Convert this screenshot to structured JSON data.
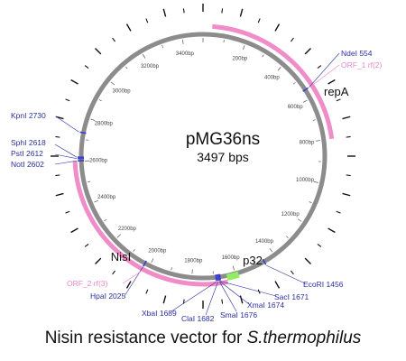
{
  "plasmid": {
    "name": "pMG36ns",
    "size_label": "3497 bps",
    "length_bp": 3497
  },
  "tick_labels": [
    {
      "bp": 200,
      "text": "200bp"
    },
    {
      "bp": 400,
      "text": "400bp"
    },
    {
      "bp": 600,
      "text": "600bp"
    },
    {
      "bp": 800,
      "text": "800bp"
    },
    {
      "bp": 1000,
      "text": "1000bp"
    },
    {
      "bp": 1200,
      "text": "1200bp"
    },
    {
      "bp": 1400,
      "text": "1400bp"
    },
    {
      "bp": 1600,
      "text": "1600bp"
    },
    {
      "bp": 1800,
      "text": "1800bp"
    },
    {
      "bp": 2000,
      "text": "2000bp"
    },
    {
      "bp": 2200,
      "text": "2200bp"
    },
    {
      "bp": 2400,
      "text": "2400bp"
    },
    {
      "bp": 2600,
      "text": "2600bp"
    },
    {
      "bp": 2800,
      "text": "2800bp"
    },
    {
      "bp": 3000,
      "text": "3000bp"
    },
    {
      "bp": 3200,
      "text": "3200bp"
    },
    {
      "bp": 3400,
      "text": "3400bp"
    }
  ],
  "features": [
    {
      "name": "repA",
      "start_bp": 40,
      "end_bp": 800,
      "color": "#f08cc8"
    },
    {
      "name": "NisI",
      "start_bp": 1640,
      "end_bp": 2600,
      "color": "#f08cc8"
    },
    {
      "name": "p32",
      "start_bp": 1585,
      "end_bp": 1640,
      "color": "#90ee60"
    }
  ],
  "orf_labels": [
    {
      "text": "ORF_1 rf(2)",
      "bp": 554
    },
    {
      "text": "ORF_2 rf(3)",
      "bp": 2025
    }
  ],
  "restriction_sites": [
    {
      "text": "NdeI 554",
      "bp": 554
    },
    {
      "text": "EcoRI 1456",
      "bp": 1456
    },
    {
      "text": "SacI 1671",
      "bp": 1671
    },
    {
      "text": "XmaI 1674",
      "bp": 1674
    },
    {
      "text": "SmaI 1676",
      "bp": 1676
    },
    {
      "text": "ClaI 1682",
      "bp": 1682
    },
    {
      "text": "XbaI 1689",
      "bp": 1689
    },
    {
      "text": "HpaI 2025",
      "bp": 2025
    },
    {
      "text": "NotI 2602",
      "bp": 2602
    },
    {
      "text": "PstI 2612",
      "bp": 2612
    },
    {
      "text": "SphI 2618",
      "bp": 2618
    },
    {
      "text": "KpnI 2730",
      "bp": 2730
    }
  ],
  "colors": {
    "backbone": "#8c8c8c",
    "feature_pink": "#f08cc8",
    "promoter_green": "#90ee60",
    "site_text": "#2b2fa0",
    "orf_text": "#e888c4",
    "site_marker": "#3a3fd0"
  },
  "caption": {
    "prefix": "Nisin resistance vector for ",
    "organism": "S.thermophilus"
  }
}
